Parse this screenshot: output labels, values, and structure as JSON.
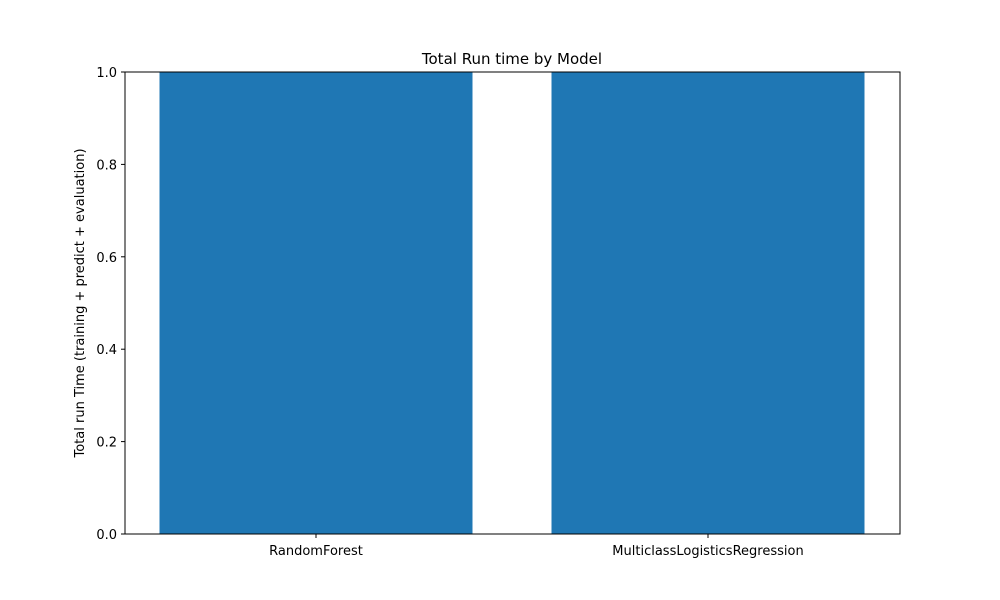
{
  "chart_data": {
    "type": "bar",
    "title": "Total Run time by Model",
    "xlabel": "",
    "ylabel": "Total run Time (training + predict + evaluation)",
    "categories": [
      "RandomForest",
      "MulticlassLogisticsRegression"
    ],
    "values": [
      1.0,
      1.0
    ],
    "ylim": [
      0,
      1.0
    ],
    "yticks": [
      "0.0",
      "0.2",
      "0.4",
      "0.6",
      "0.8",
      "1.0"
    ],
    "bar_color": "#1f77b4",
    "grid": false,
    "legend": "none"
  }
}
